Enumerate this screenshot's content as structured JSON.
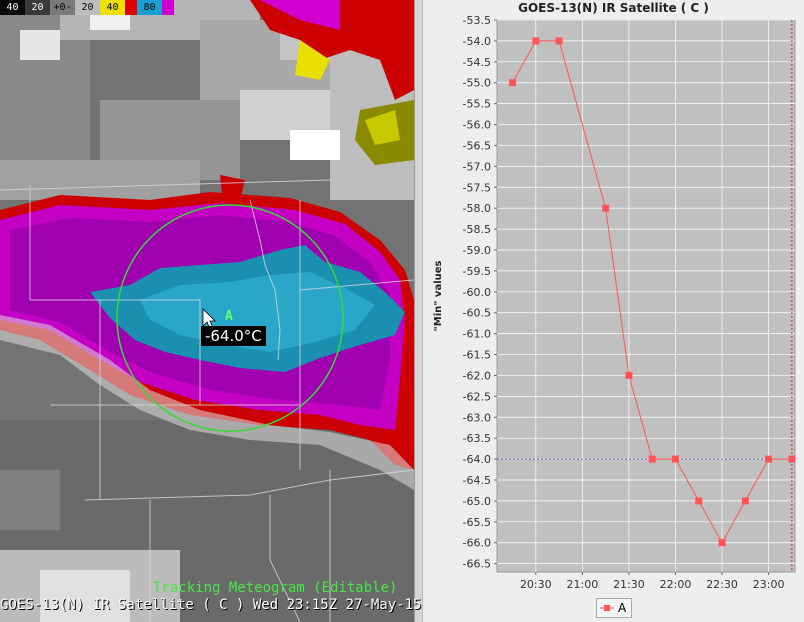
{
  "colorbar": {
    "segments": [
      {
        "label": "40",
        "color": "#0a0a0a",
        "text": "#ffffff"
      },
      {
        "label": "20",
        "color": "#3a3a3a",
        "text": "#ffffff"
      },
      {
        "label": "+0-",
        "color": "#7a7a7a",
        "text": "#000000"
      },
      {
        "label": "20",
        "color": "#bdbdbd",
        "text": "#000000"
      },
      {
        "label": "40",
        "color": "#f0e000",
        "text": "#000000"
      },
      {
        "label": "",
        "color": "#e00000",
        "text": "#000000"
      },
      {
        "label": "80",
        "color": "#1aa0d0",
        "text": "#000000"
      },
      {
        "label": "",
        "color": "#d000d0",
        "text": "#000000"
      }
    ]
  },
  "map": {
    "probe_letter": "A",
    "probe_value": "-64.0°C",
    "meteogram_title": "Tracking Meteogram (Editable)",
    "caption": "GOES-13(N) IR Satellite ( C )  Wed 23:15Z 27-May-15"
  },
  "chart": {
    "title": "GOES-13(N) IR Satellite ( C )",
    "ylabel": "\"Min\" values",
    "legend_label": "A"
  },
  "chart_data": {
    "type": "line",
    "title": "GOES-13(N) IR Satellite ( C )",
    "xlabel": "",
    "ylabel": "\"Min\" values",
    "x": [
      "20:15",
      "20:30",
      "20:45",
      "21:15",
      "21:30",
      "21:45",
      "22:00",
      "22:15",
      "22:30",
      "22:45",
      "23:00",
      "23:15"
    ],
    "x_ticks": [
      "20:30",
      "21:00",
      "21:30",
      "22:00",
      "22:30",
      "23:00"
    ],
    "series": [
      {
        "name": "A",
        "color": "#ff5555",
        "values": [
          -55.0,
          -54.0,
          -54.0,
          -58.0,
          -62.0,
          -64.0,
          -64.0,
          -65.0,
          -66.0,
          -65.0,
          -64.0,
          -64.0
        ]
      }
    ],
    "ylim": [
      -66.7,
      -53.5
    ],
    "y_ticks": [
      -53.5,
      -54.0,
      -54.5,
      -55.0,
      -55.5,
      -56.0,
      -56.5,
      -57.0,
      -57.5,
      -58.0,
      -58.5,
      -59.0,
      -59.5,
      -60.0,
      -60.5,
      -61.0,
      -61.5,
      -62.0,
      -62.5,
      -63.0,
      -63.5,
      -64.0,
      -64.5,
      -65.0,
      -65.5,
      -66.0,
      -66.5
    ],
    "reference_line": -64.0,
    "current_time_marker": "23:15",
    "grid": true,
    "legend_position": "bottom"
  }
}
